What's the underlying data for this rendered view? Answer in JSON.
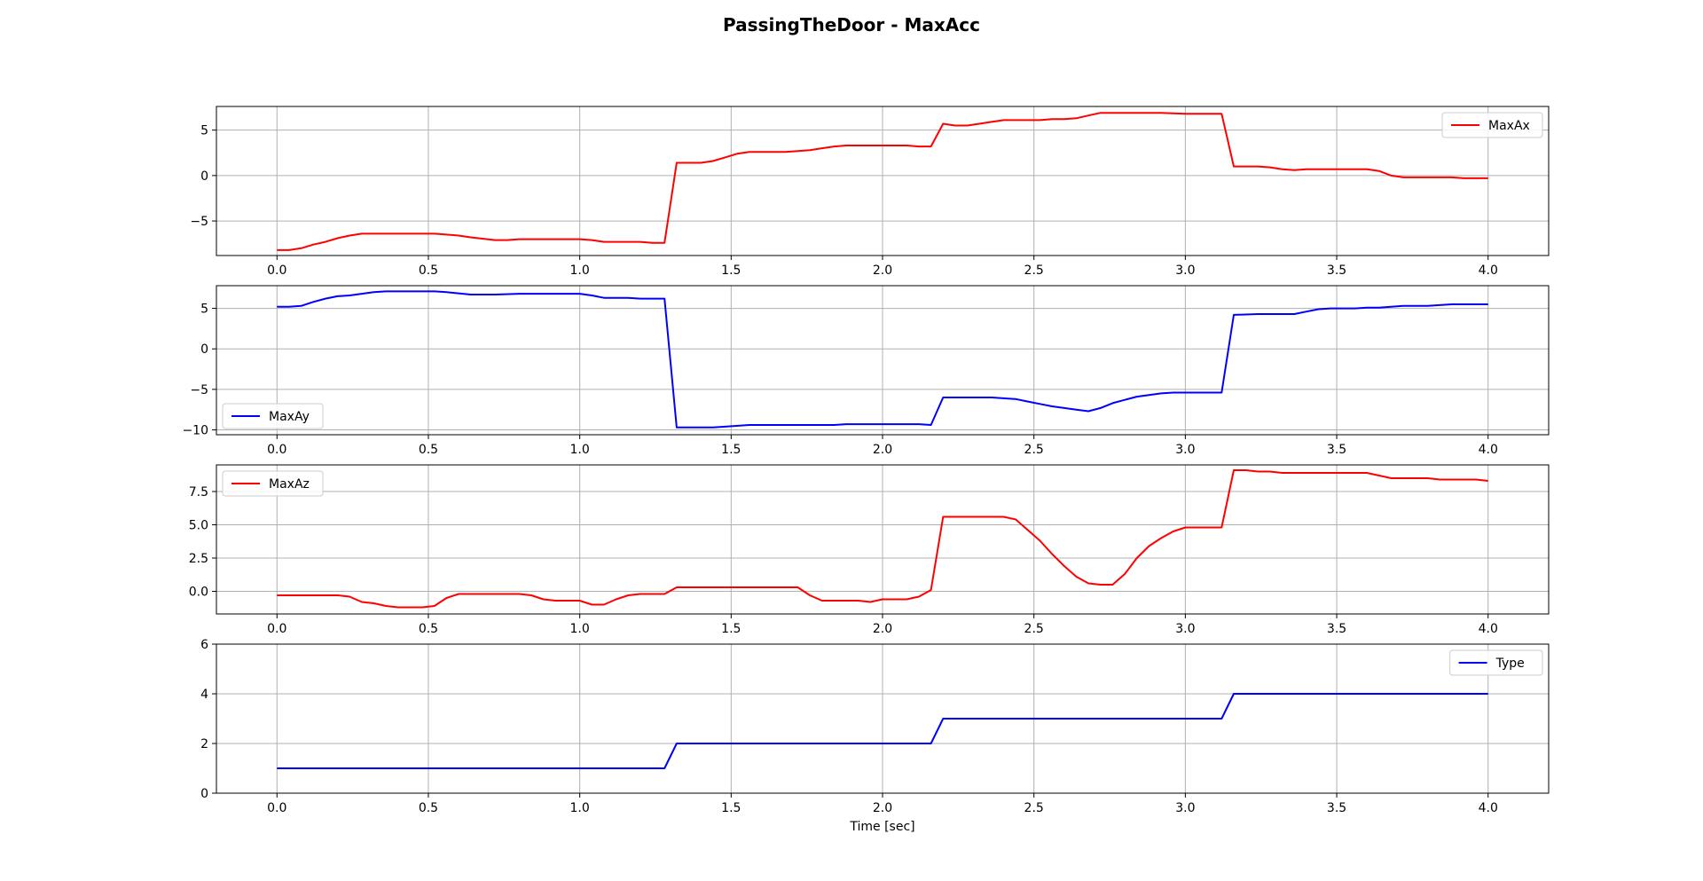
{
  "figure": {
    "title": "PassingTheDoor - MaxAcc"
  },
  "colors": {
    "red": "#ff0000",
    "blue": "#0000ff"
  },
  "chart_data": [
    {
      "type": "line",
      "title": "",
      "xlabel": "",
      "ylabel": "",
      "xlim": [
        -0.2,
        4.2
      ],
      "ylim": [
        -8.8,
        7.6
      ],
      "xticks": [
        0.0,
        0.5,
        1.0,
        1.5,
        2.0,
        2.5,
        3.0,
        3.5,
        4.0
      ],
      "xtick_labels": [
        "0.0",
        "0.5",
        "1.0",
        "1.5",
        "2.0",
        "2.5",
        "3.0",
        "3.5",
        "4.0"
      ],
      "yticks": [
        -5,
        0,
        5
      ],
      "ytick_labels": [
        "−5",
        "0",
        "5"
      ],
      "grid": true,
      "legend_position": "top-right",
      "series": [
        {
          "name": "MaxAx",
          "color": "#ff0000",
          "x": [
            0.0,
            0.04,
            0.08,
            0.12,
            0.16,
            0.2,
            0.24,
            0.28,
            0.32,
            0.4,
            0.5,
            0.52,
            0.56,
            0.6,
            0.64,
            0.72,
            0.76,
            0.8,
            1.0,
            1.04,
            1.08,
            1.12,
            1.2,
            1.24,
            1.28,
            1.32,
            1.36,
            1.4,
            1.44,
            1.48,
            1.52,
            1.56,
            1.6,
            1.64,
            1.68,
            1.72,
            1.76,
            1.8,
            1.84,
            1.88,
            2.0,
            2.08,
            2.12,
            2.16,
            2.2,
            2.24,
            2.28,
            2.32,
            2.36,
            2.4,
            2.44,
            2.48,
            2.52,
            2.56,
            2.6,
            2.64,
            2.68,
            2.72,
            2.76,
            2.8,
            2.92,
            3.0,
            3.12,
            3.16,
            3.2,
            3.24,
            3.28,
            3.32,
            3.36,
            3.4,
            3.44,
            3.48,
            3.52,
            3.56,
            3.6,
            3.64,
            3.68,
            3.72,
            3.76,
            3.8,
            3.88,
            3.92,
            3.96,
            4.0
          ],
          "y": [
            -8.2,
            -8.2,
            -8.0,
            -7.6,
            -7.3,
            -6.9,
            -6.6,
            -6.4,
            -6.4,
            -6.4,
            -6.4,
            -6.4,
            -6.5,
            -6.6,
            -6.8,
            -7.1,
            -7.1,
            -7.0,
            -7.0,
            -7.1,
            -7.3,
            -7.3,
            -7.3,
            -7.4,
            -7.4,
            1.4,
            1.4,
            1.4,
            1.6,
            2.0,
            2.4,
            2.6,
            2.6,
            2.6,
            2.6,
            2.7,
            2.8,
            3.0,
            3.2,
            3.3,
            3.3,
            3.3,
            3.2,
            3.2,
            5.7,
            5.5,
            5.5,
            5.7,
            5.9,
            6.1,
            6.1,
            6.1,
            6.1,
            6.2,
            6.2,
            6.3,
            6.6,
            6.9,
            6.9,
            6.9,
            6.9,
            6.8,
            6.8,
            1.0,
            1.0,
            1.0,
            0.9,
            0.7,
            0.6,
            0.7,
            0.7,
            0.7,
            0.7,
            0.7,
            0.7,
            0.5,
            0.0,
            -0.2,
            -0.2,
            -0.2,
            -0.2,
            -0.3,
            -0.3,
            -0.3
          ]
        }
      ]
    },
    {
      "type": "line",
      "title": "",
      "xlabel": "",
      "ylabel": "",
      "xlim": [
        -0.2,
        4.2
      ],
      "ylim": [
        -10.6,
        7.8
      ],
      "xticks": [
        0.0,
        0.5,
        1.0,
        1.5,
        2.0,
        2.5,
        3.0,
        3.5,
        4.0
      ],
      "xtick_labels": [
        "0.0",
        "0.5",
        "1.0",
        "1.5",
        "2.0",
        "2.5",
        "3.0",
        "3.5",
        "4.0"
      ],
      "yticks": [
        -10,
        -5,
        0,
        5
      ],
      "ytick_labels": [
        "−10",
        "−5",
        "0",
        "5"
      ],
      "grid": true,
      "legend_position": "bottom-left",
      "series": [
        {
          "name": "MaxAy",
          "color": "#0000ff",
          "x": [
            0.0,
            0.04,
            0.08,
            0.12,
            0.16,
            0.2,
            0.24,
            0.28,
            0.32,
            0.36,
            0.4,
            0.48,
            0.52,
            0.56,
            0.64,
            0.72,
            0.8,
            1.0,
            1.04,
            1.08,
            1.16,
            1.2,
            1.28,
            1.32,
            1.36,
            1.44,
            1.48,
            1.56,
            1.6,
            1.84,
            1.88,
            2.08,
            2.12,
            2.16,
            2.2,
            2.36,
            2.44,
            2.48,
            2.52,
            2.56,
            2.64,
            2.68,
            2.72,
            2.76,
            2.8,
            2.84,
            2.92,
            2.96,
            3.0,
            3.04,
            3.08,
            3.12,
            3.16,
            3.24,
            3.28,
            3.36,
            3.4,
            3.44,
            3.48,
            3.56,
            3.6,
            3.64,
            3.68,
            3.72,
            3.8,
            3.84,
            3.88,
            4.0
          ],
          "y": [
            5.2,
            5.2,
            5.3,
            5.8,
            6.2,
            6.5,
            6.6,
            6.8,
            7.0,
            7.1,
            7.1,
            7.1,
            7.1,
            7.0,
            6.7,
            6.7,
            6.8,
            6.8,
            6.6,
            6.3,
            6.3,
            6.2,
            6.2,
            -9.7,
            -9.7,
            -9.7,
            -9.6,
            -9.4,
            -9.4,
            -9.4,
            -9.3,
            -9.3,
            -9.3,
            -9.4,
            -6.0,
            -6.0,
            -6.2,
            -6.5,
            -6.8,
            -7.1,
            -7.5,
            -7.7,
            -7.3,
            -6.7,
            -6.3,
            -5.9,
            -5.5,
            -5.4,
            -5.4,
            -5.4,
            -5.4,
            -5.4,
            4.2,
            4.3,
            4.3,
            4.3,
            4.6,
            4.9,
            5.0,
            5.0,
            5.1,
            5.1,
            5.2,
            5.3,
            5.3,
            5.4,
            5.5,
            5.5
          ]
        }
      ]
    },
    {
      "type": "line",
      "title": "",
      "xlabel": "",
      "ylabel": "",
      "xlim": [
        -0.2,
        4.2
      ],
      "ylim": [
        -1.7,
        9.5
      ],
      "xticks": [
        0.0,
        0.5,
        1.0,
        1.5,
        2.0,
        2.5,
        3.0,
        3.5,
        4.0
      ],
      "xtick_labels": [
        "0.0",
        "0.5",
        "1.0",
        "1.5",
        "2.0",
        "2.5",
        "3.0",
        "3.5",
        "4.0"
      ],
      "yticks": [
        0.0,
        2.5,
        5.0,
        7.5
      ],
      "ytick_labels": [
        "0.0",
        "2.5",
        "5.0",
        "7.5"
      ],
      "grid": true,
      "legend_position": "top-left",
      "series": [
        {
          "name": "MaxAz",
          "color": "#ff0000",
          "x": [
            0.0,
            0.08,
            0.2,
            0.24,
            0.28,
            0.32,
            0.36,
            0.4,
            0.48,
            0.52,
            0.56,
            0.6,
            0.64,
            0.8,
            0.84,
            0.88,
            0.92,
            1.0,
            1.04,
            1.08,
            1.12,
            1.16,
            1.2,
            1.28,
            1.32,
            1.36,
            1.56,
            1.6,
            1.68,
            1.72,
            1.76,
            1.8,
            1.92,
            1.96,
            2.0,
            2.08,
            2.12,
            2.16,
            2.2,
            2.24,
            2.4,
            2.44,
            2.48,
            2.52,
            2.56,
            2.6,
            2.64,
            2.68,
            2.72,
            2.76,
            2.8,
            2.84,
            2.88,
            2.92,
            2.96,
            3.0,
            3.12,
            3.16,
            3.2,
            3.24,
            3.28,
            3.32,
            3.56,
            3.6,
            3.64,
            3.68,
            3.8,
            3.84,
            3.88,
            3.96,
            4.0
          ],
          "y": [
            -0.3,
            -0.3,
            -0.3,
            -0.4,
            -0.8,
            -0.9,
            -1.1,
            -1.2,
            -1.2,
            -1.1,
            -0.5,
            -0.2,
            -0.2,
            -0.2,
            -0.3,
            -0.6,
            -0.7,
            -0.7,
            -1.0,
            -1.0,
            -0.6,
            -0.3,
            -0.2,
            -0.2,
            0.3,
            0.3,
            0.3,
            0.3,
            0.3,
            0.3,
            -0.3,
            -0.7,
            -0.7,
            -0.8,
            -0.6,
            -0.6,
            -0.4,
            0.1,
            5.6,
            5.6,
            5.6,
            5.4,
            4.6,
            3.8,
            2.8,
            1.9,
            1.1,
            0.6,
            0.5,
            0.5,
            1.3,
            2.5,
            3.4,
            4.0,
            4.5,
            4.8,
            4.8,
            9.1,
            9.1,
            9.0,
            9.0,
            8.9,
            8.9,
            8.9,
            8.7,
            8.5,
            8.5,
            8.4,
            8.4,
            8.4,
            8.3
          ]
        }
      ]
    },
    {
      "type": "line",
      "title": "",
      "xlabel": "Time [sec]",
      "ylabel": "",
      "xlim": [
        -0.2,
        4.2
      ],
      "ylim": [
        0,
        6
      ],
      "xticks": [
        0.0,
        0.5,
        1.0,
        1.5,
        2.0,
        2.5,
        3.0,
        3.5,
        4.0
      ],
      "xtick_labels": [
        "0.0",
        "0.5",
        "1.0",
        "1.5",
        "2.0",
        "2.5",
        "3.0",
        "3.5",
        "4.0"
      ],
      "yticks": [
        0,
        2,
        4,
        6
      ],
      "ytick_labels": [
        "0",
        "2",
        "4",
        "6"
      ],
      "grid": true,
      "legend_position": "top-right",
      "series": [
        {
          "name": "Type",
          "color": "#0000ff",
          "x": [
            0.0,
            1.28,
            1.32,
            2.16,
            2.2,
            3.12,
            3.16,
            4.0
          ],
          "y": [
            1,
            1,
            2,
            2,
            3,
            3,
            4,
            4
          ]
        }
      ]
    }
  ]
}
